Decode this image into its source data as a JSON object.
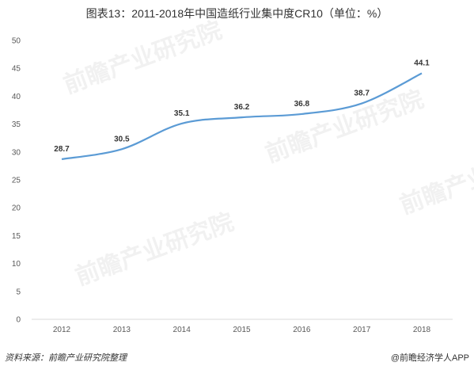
{
  "chart_data": {
    "type": "line",
    "title": "图表13：2011-2018年中国造纸行业集中度CR10（单位：%）",
    "xlabel": "",
    "ylabel": "",
    "categories": [
      "2012",
      "2013",
      "2014",
      "2015",
      "2016",
      "2017",
      "2018"
    ],
    "series": [
      {
        "values": [
          28.7,
          30.5,
          35.1,
          36.2,
          36.8,
          38.7,
          44.1
        ]
      }
    ],
    "data_labels": [
      "28.7",
      "30.5",
      "35.1",
      "36.2",
      "36.8",
      "38.7",
      "44.1"
    ],
    "ylim": [
      0,
      50
    ],
    "yticks": [
      0,
      5,
      10,
      15,
      20,
      25,
      30,
      35,
      40,
      45,
      50
    ],
    "ytick_labels": [
      "0",
      "5",
      "10",
      "15",
      "20",
      "25",
      "30",
      "35",
      "40",
      "45",
      "50"
    ],
    "grid": false,
    "legend": "none",
    "line_color": "#5b9bd5",
    "axis_color": "#d9d9d9"
  },
  "footer": {
    "source": "资料来源：前瞻产业研究院整理",
    "brand": "@前瞻经济学人APP"
  },
  "watermark": {
    "text": "前瞻产业研究院"
  }
}
